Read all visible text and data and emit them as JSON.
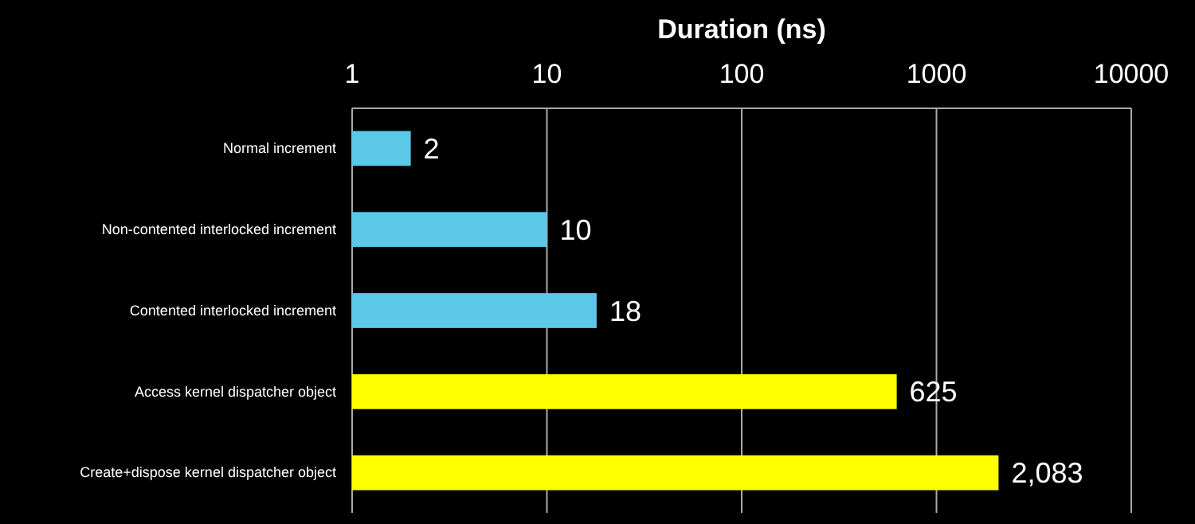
{
  "chart_data": {
    "type": "bar",
    "orientation": "horizontal",
    "xlabel": "Duration (ns)",
    "categories": [
      "Normal increment",
      "Non-contented interlocked increment",
      "Contented interlocked increment",
      "Access kernel dispatcher object",
      "Create+dispose kernel dispatcher object"
    ],
    "values": [
      2,
      10,
      18,
      625,
      2083
    ],
    "value_labels": [
      "2",
      "10",
      "18",
      "625",
      "2,083"
    ],
    "colors": [
      "#5bc8e8",
      "#5bc8e8",
      "#5bc8e8",
      "#ffff00",
      "#ffff00"
    ],
    "log": "x",
    "xlim": [
      1,
      10000
    ],
    "xticks": [
      1,
      10,
      100,
      1000,
      10000
    ],
    "grid": "x"
  }
}
